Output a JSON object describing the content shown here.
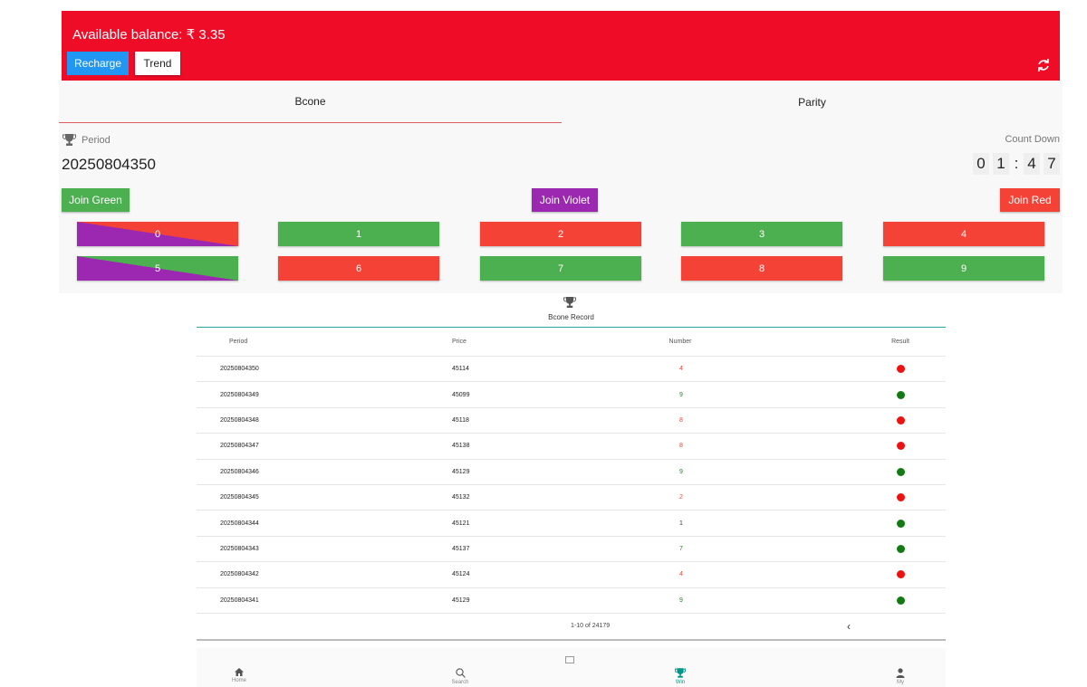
{
  "header": {
    "balance": "Available balance: ₹ 3.35",
    "recharge_label": "Recharge",
    "trend_label": "Trend"
  },
  "tabs": [
    {
      "label": "Bcone",
      "active": true
    },
    {
      "label": "Parity",
      "active": false
    }
  ],
  "game": {
    "period_label": "Period",
    "period_value": "20250804350",
    "countdown_label": "Count Down",
    "countdown_digits": [
      "0",
      "1",
      ":",
      "4",
      "7"
    ],
    "join_green": "Join Green",
    "join_violet": "Join Violet",
    "join_red": "Join Red",
    "numbers": [
      "0",
      "1",
      "2",
      "3",
      "4",
      "5",
      "6",
      "7",
      "8",
      "9"
    ]
  },
  "record": {
    "title": "Bcone Record",
    "columns": [
      "Period",
      "Price",
      "Number",
      "Result"
    ],
    "rows": [
      {
        "period": "20250804350",
        "price": "45114",
        "number": "4",
        "result": "red"
      },
      {
        "period": "20250804349",
        "price": "45099",
        "number": "9",
        "result": "green"
      },
      {
        "period": "20250804348",
        "price": "45118",
        "number": "8",
        "result": "red"
      },
      {
        "period": "20250804347",
        "price": "45138",
        "number": "8",
        "result": "red"
      },
      {
        "period": "20250804346",
        "price": "45129",
        "number": "9",
        "result": "green"
      },
      {
        "period": "20250804345",
        "price": "45132",
        "number": "2",
        "result": "red"
      },
      {
        "period": "20250804344",
        "price": "45121",
        "number": "1",
        "result": "green"
      },
      {
        "period": "20250804343",
        "price": "45137",
        "number": "7",
        "result": "green"
      },
      {
        "period": "20250804342",
        "price": "45124",
        "number": "4",
        "result": "red"
      },
      {
        "period": "20250804341",
        "price": "45129",
        "number": "9",
        "result": "green"
      }
    ],
    "pagination": "1-10 of 24179"
  },
  "nav": [
    {
      "label": "Home",
      "icon": "home-icon"
    },
    {
      "label": "Search",
      "icon": "search-icon"
    },
    {
      "label": "Win",
      "icon": "trophy-icon"
    },
    {
      "label": "My",
      "icon": "user-icon"
    }
  ],
  "colors": {
    "header_red": "#ee0c27",
    "green": "#4caf50",
    "red": "#f44336",
    "violet": "#9c27b0",
    "accent_teal": "#009688"
  }
}
